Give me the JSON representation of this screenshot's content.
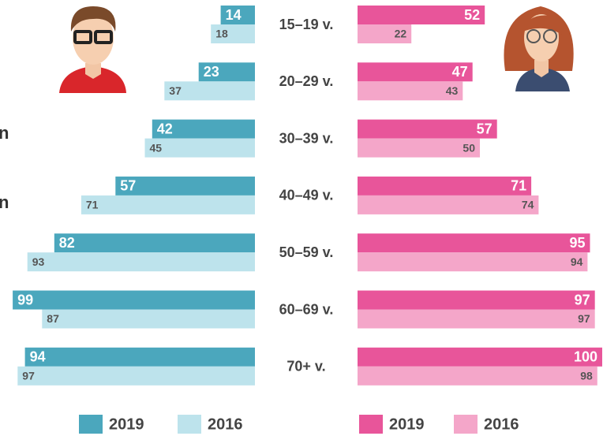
{
  "chart_data": {
    "type": "butterfly-bar",
    "categories": [
      "15–19 v.",
      "20–29 v.",
      "30–39 v.",
      "40–49 v.",
      "50–59 v.",
      "60–69 v.",
      "70+ v."
    ],
    "fragments": [
      "n",
      "n"
    ],
    "series": [
      {
        "name": "2019",
        "side": "left",
        "color": "#4ba7bd",
        "values": [
          14,
          23,
          42,
          57,
          82,
          99,
          94
        ]
      },
      {
        "name": "2016",
        "side": "left",
        "color": "#bde3ec",
        "values": [
          18,
          37,
          45,
          71,
          93,
          87,
          97
        ]
      },
      {
        "name": "2019",
        "side": "right",
        "color": "#e8559a",
        "values": [
          52,
          47,
          57,
          71,
          95,
          97,
          100
        ]
      },
      {
        "name": "2016",
        "side": "right",
        "color": "#f4a6c9",
        "values": [
          22,
          43,
          50,
          74,
          94,
          97,
          98
        ]
      }
    ]
  }
}
